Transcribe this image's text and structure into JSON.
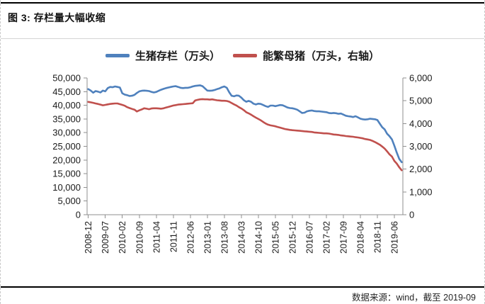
{
  "figure": {
    "title": "图 3: 存栏量大幅收缩",
    "source_note": "数据来源：wind，截至 2019-09"
  },
  "chart_data": {
    "type": "line",
    "title": "存栏量大幅收缩",
    "x_start": "2008-12",
    "x_end": "2019-09",
    "frequency": "monthly",
    "grid": false,
    "legend_position": "top",
    "x_tick_labels": [
      "2008-12",
      "2009-07",
      "2010-02",
      "2010-09",
      "2011-04",
      "2011-11",
      "2012-06",
      "2013-01",
      "2013-08",
      "2014-03",
      "2014-10",
      "2015-05",
      "2015-12",
      "2016-07",
      "2017-02",
      "2017-09",
      "2018-04",
      "2018-11",
      "2019-06"
    ],
    "x_tick_month_indexes": [
      0,
      7,
      14,
      21,
      28,
      35,
      42,
      49,
      56,
      63,
      70,
      77,
      84,
      91,
      98,
      105,
      112,
      119,
      126
    ],
    "left_axis": {
      "min": 0,
      "max": 50000,
      "step": 5000,
      "tick_labels": [
        "0",
        "5,000",
        "10,000",
        "15,000",
        "20,000",
        "25,000",
        "30,000",
        "35,000",
        "40,000",
        "45,000",
        "50,000"
      ]
    },
    "right_axis": {
      "min": 0,
      "max": 6000,
      "step": 1000,
      "tick_labels": [
        "0",
        "1,000",
        "2,000",
        "3,000",
        "4,000",
        "5,000",
        "6,000"
      ]
    },
    "series": [
      {
        "name": "生猪存栏（万头）",
        "axis": "left",
        "color": "#4F81BD",
        "values": [
          45900,
          45400,
          44600,
          45200,
          45000,
          44700,
          45400,
          45100,
          46300,
          46700,
          46600,
          46900,
          46700,
          46500,
          44400,
          43900,
          43700,
          43400,
          43500,
          43800,
          44500,
          45100,
          45300,
          45400,
          45300,
          45200,
          44900,
          44700,
          44900,
          45300,
          45700,
          46000,
          46300,
          46500,
          46700,
          46900,
          47000,
          46700,
          46400,
          46300,
          46400,
          46400,
          46600,
          46900,
          47100,
          47200,
          47300,
          47000,
          46200,
          45400,
          45300,
          45400,
          45600,
          45900,
          46200,
          46600,
          46900,
          46400,
          44800,
          43500,
          43300,
          43600,
          43500,
          42800,
          41900,
          41300,
          41600,
          41300,
          40600,
          40300,
          40600,
          40500,
          40100,
          39700,
          39400,
          39900,
          39900,
          39700,
          39900,
          40100,
          40000,
          39600,
          39200,
          39000,
          38900,
          38700,
          38400,
          37800,
          37200,
          37300,
          37800,
          38000,
          38100,
          37900,
          37800,
          37800,
          37700,
          37600,
          37500,
          37200,
          37100,
          37200,
          37100,
          36900,
          37000,
          36600,
          36200,
          36000,
          35900,
          35700,
          36000,
          35600,
          35100,
          34900,
          34800,
          34900,
          35100,
          35000,
          34900,
          34600,
          33300,
          32000,
          31200,
          29600,
          28700,
          27500,
          25200,
          22700,
          20400,
          19200
        ]
      },
      {
        "name": "能繁母猪（万头，右轴）",
        "axis": "right",
        "color": "#C0504D",
        "values": [
          4950,
          4930,
          4910,
          4880,
          4860,
          4830,
          4800,
          4820,
          4840,
          4860,
          4870,
          4880,
          4880,
          4850,
          4820,
          4780,
          4720,
          4680,
          4640,
          4610,
          4530,
          4580,
          4620,
          4670,
          4650,
          4630,
          4660,
          4670,
          4670,
          4660,
          4650,
          4670,
          4700,
          4730,
          4760,
          4790,
          4810,
          4830,
          4840,
          4850,
          4860,
          4870,
          4880,
          4890,
          5010,
          5040,
          5060,
          5070,
          5060,
          5060,
          5050,
          5060,
          5040,
          5020,
          5010,
          5000,
          5000,
          4990,
          4960,
          4900,
          4840,
          4790,
          4720,
          4660,
          4590,
          4500,
          4450,
          4390,
          4320,
          4260,
          4200,
          4140,
          4070,
          4000,
          3950,
          3920,
          3900,
          3880,
          3850,
          3820,
          3790,
          3760,
          3740,
          3720,
          3710,
          3700,
          3690,
          3680,
          3670,
          3660,
          3650,
          3640,
          3630,
          3610,
          3600,
          3590,
          3580,
          3570,
          3570,
          3560,
          3540,
          3520,
          3510,
          3500,
          3480,
          3470,
          3450,
          3440,
          3430,
          3420,
          3400,
          3390,
          3370,
          3350,
          3320,
          3300,
          3280,
          3240,
          3190,
          3130,
          3070,
          2990,
          2900,
          2780,
          2650,
          2550,
          2360,
          2240,
          2080,
          1950
        ]
      }
    ]
  }
}
